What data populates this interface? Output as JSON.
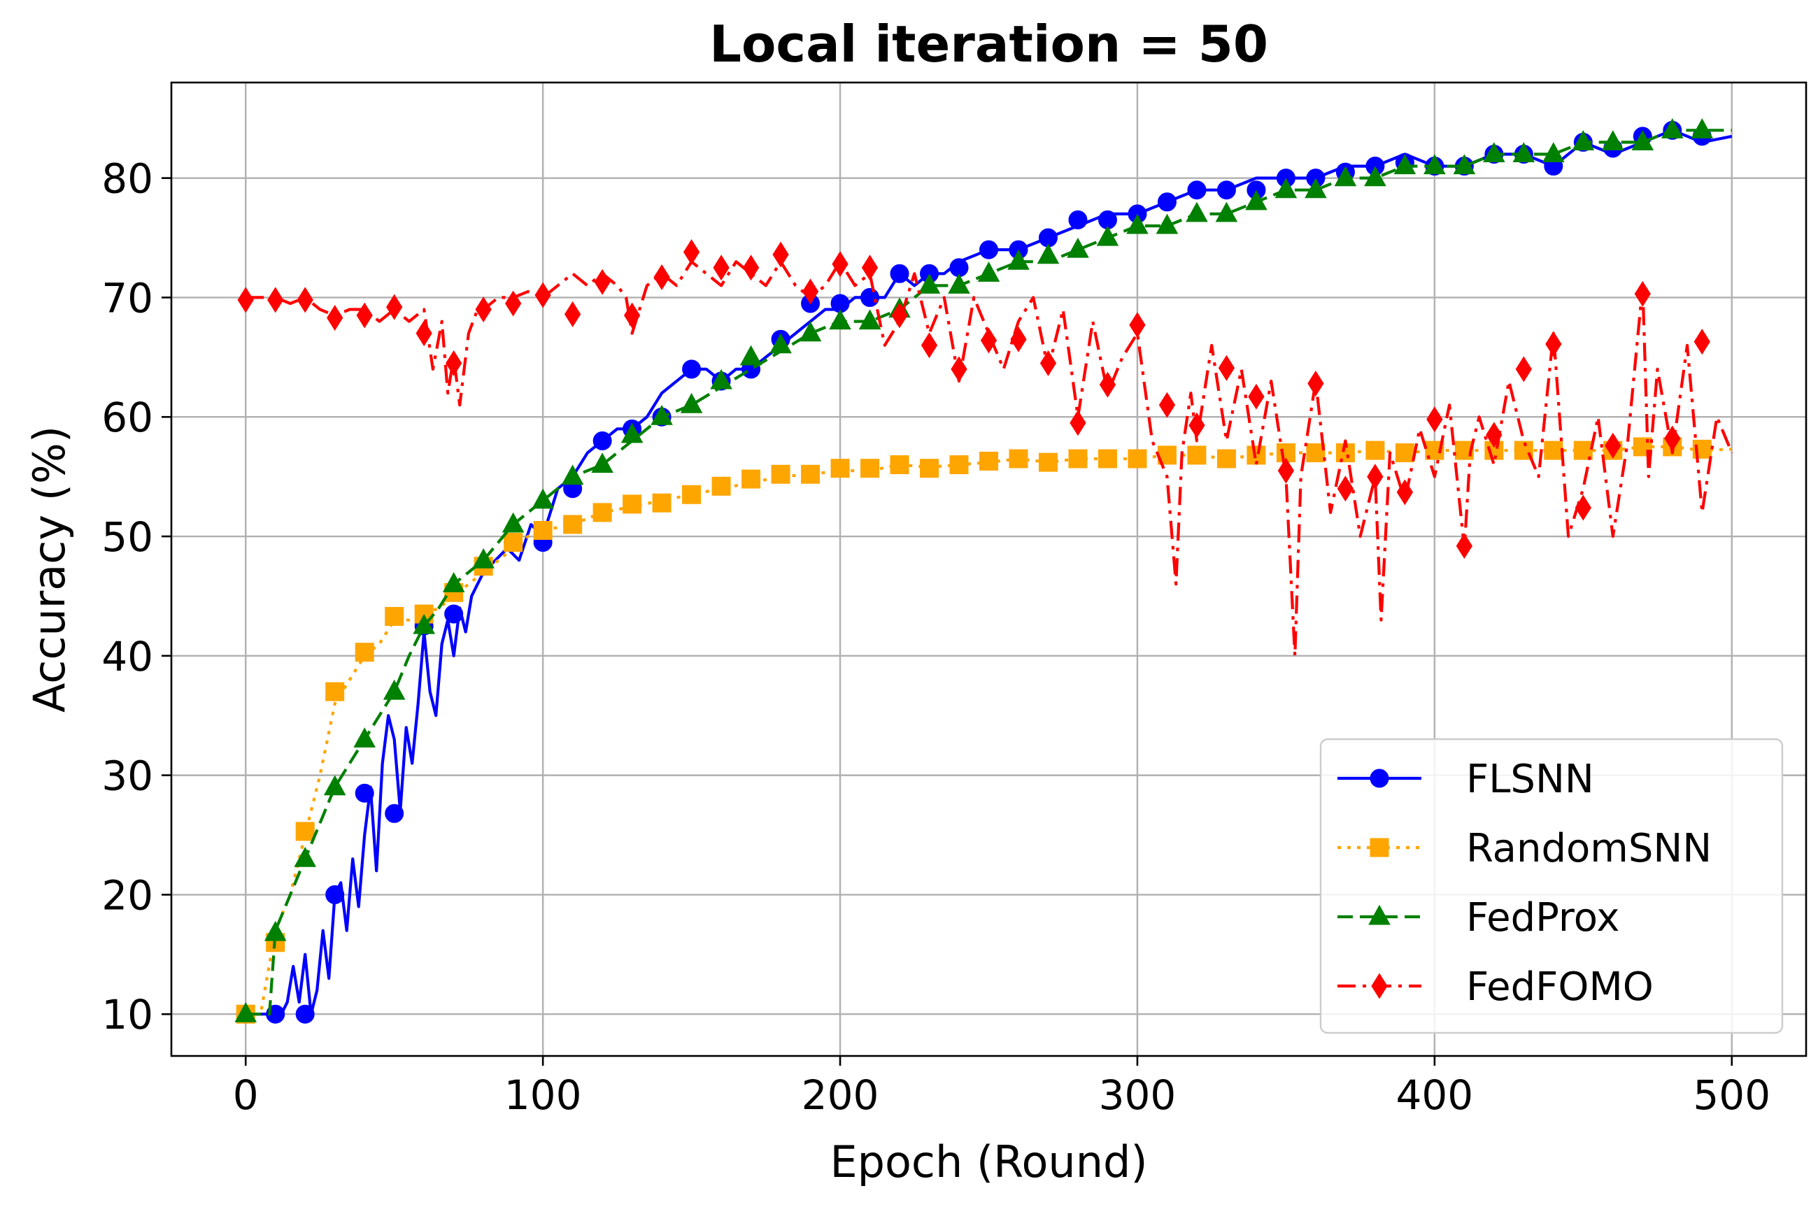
{
  "chart_data": {
    "type": "line",
    "title": "Local iteration = 50",
    "xlabel": "Epoch (Round)",
    "ylabel": "Accuracy (%)",
    "xlim": [
      -25,
      525
    ],
    "ylim": [
      6.5,
      88
    ],
    "xticks": [
      0,
      100,
      200,
      300,
      400,
      500
    ],
    "yticks": [
      10,
      20,
      30,
      40,
      50,
      60,
      70,
      80
    ],
    "grid": true,
    "legend": "lower-right",
    "series": [
      {
        "name": "FLSNN",
        "color": "#0000ff",
        "linestyle": "solid",
        "marker": "circle",
        "x": [
          0,
          2,
          4,
          6,
          8,
          10,
          12,
          14,
          16,
          18,
          20,
          22,
          24,
          26,
          28,
          30,
          32,
          34,
          36,
          38,
          40,
          42,
          44,
          46,
          48,
          50,
          52,
          54,
          56,
          58,
          60,
          62,
          64,
          66,
          68,
          70,
          72,
          74,
          76,
          78,
          80,
          84,
          88,
          92,
          96,
          100,
          105,
          110,
          115,
          120,
          125,
          130,
          135,
          140,
          145,
          150,
          155,
          160,
          165,
          170,
          175,
          180,
          185,
          190,
          195,
          200,
          205,
          210,
          215,
          220,
          225,
          230,
          235,
          240,
          250,
          260,
          270,
          280,
          290,
          300,
          310,
          320,
          330,
          340,
          350,
          360,
          370,
          380,
          390,
          400,
          410,
          420,
          430,
          440,
          450,
          460,
          470,
          480,
          490,
          500
        ],
        "y": [
          10,
          10,
          10,
          10,
          10,
          10,
          10,
          11,
          14,
          11,
          15,
          10,
          12,
          17,
          13,
          20,
          21,
          17,
          23,
          19,
          25,
          29,
          22,
          31,
          35,
          33,
          27,
          34,
          31,
          36,
          42,
          37,
          35,
          41,
          43,
          40,
          44,
          42,
          45,
          46,
          47,
          48,
          49,
          48,
          51,
          50,
          54,
          55,
          57,
          58,
          59,
          59,
          60,
          62,
          63,
          64,
          64,
          63,
          64,
          64,
          65,
          66,
          67,
          68,
          69,
          69,
          70,
          70,
          70,
          72,
          71,
          72,
          72,
          73,
          74,
          74,
          75,
          76,
          77,
          77,
          78,
          79,
          79,
          80,
          80,
          80,
          81,
          81,
          82,
          81,
          81,
          82,
          82,
          81,
          83,
          82,
          83,
          84,
          83,
          83.5
        ],
        "markers_x": [
          0,
          10,
          20,
          30,
          40,
          50,
          60,
          70,
          80,
          90,
          100,
          110,
          120,
          130,
          140,
          150,
          160,
          170,
          180,
          190,
          200,
          210,
          220,
          230,
          240,
          250,
          260,
          270,
          280,
          290,
          300,
          310,
          320,
          330,
          340,
          350,
          360,
          370,
          380,
          390,
          400,
          410,
          420,
          430,
          440,
          450,
          460,
          470,
          480,
          490
        ],
        "markers_y": [
          10,
          10,
          10,
          20,
          28.5,
          26.8,
          42.5,
          43.5,
          47.5,
          49.5,
          49.5,
          54,
          58,
          59,
          60,
          64,
          63,
          64,
          66.5,
          69.5,
          69.5,
          70,
          72,
          72,
          72.5,
          74,
          74,
          75,
          76.5,
          76.5,
          77,
          78,
          79,
          79,
          79,
          80,
          80,
          80.5,
          81,
          81.3,
          81,
          81,
          82,
          82,
          81,
          83,
          82.5,
          83.5,
          84,
          83.5
        ]
      },
      {
        "name": "RandomSNN",
        "color": "#ffa500",
        "linestyle": "dotted",
        "marker": "square",
        "x": [
          0,
          5,
          10,
          15,
          20,
          25,
          30,
          35,
          40,
          45,
          50,
          55,
          60,
          65,
          70,
          75,
          80,
          85,
          90,
          95,
          100,
          110,
          120,
          130,
          140,
          150,
          160,
          170,
          180,
          190,
          200,
          210,
          220,
          230,
          240,
          250,
          260,
          270,
          280,
          290,
          300,
          310,
          320,
          330,
          340,
          350,
          360,
          370,
          380,
          390,
          400,
          410,
          420,
          430,
          440,
          450,
          460,
          470,
          480,
          490,
          500
        ],
        "y": [
          10,
          10,
          17,
          20,
          25,
          30,
          36,
          38,
          40,
          41,
          43,
          43,
          43.5,
          44,
          45,
          46,
          47,
          48,
          49,
          50,
          50.5,
          51,
          52,
          52.5,
          53,
          53.5,
          54,
          54.5,
          55,
          55.2,
          55.5,
          55.5,
          56,
          55.8,
          56,
          56.2,
          56.5,
          56.2,
          56.5,
          56.5,
          56.5,
          56.8,
          56.8,
          56.5,
          56.8,
          57,
          57,
          57,
          57.2,
          57,
          57.2,
          57.2,
          57.2,
          57.2,
          57.2,
          57.2,
          57.2,
          57.5,
          57.5,
          57.2,
          57.3
        ],
        "markers_x": [
          0,
          10,
          20,
          30,
          40,
          50,
          60,
          70,
          80,
          90,
          100,
          110,
          120,
          130,
          140,
          150,
          160,
          170,
          180,
          190,
          200,
          210,
          220,
          230,
          240,
          250,
          260,
          270,
          280,
          290,
          300,
          310,
          320,
          330,
          340,
          350,
          360,
          370,
          380,
          390,
          400,
          410,
          420,
          430,
          440,
          450,
          460,
          470,
          480,
          490
        ],
        "markers_y": [
          10,
          16,
          25.3,
          37,
          40.3,
          43.3,
          43.5,
          45.3,
          47.5,
          49.5,
          50.5,
          51,
          52,
          52.7,
          52.8,
          53.5,
          54.2,
          54.8,
          55.2,
          55.2,
          55.7,
          55.7,
          56,
          55.7,
          56,
          56.3,
          56.5,
          56.2,
          56.5,
          56.5,
          56.5,
          56.8,
          56.8,
          56.5,
          56.8,
          57,
          57,
          57,
          57.2,
          57,
          57.2,
          57.2,
          57.2,
          57.2,
          57.2,
          57.2,
          57.2,
          57.5,
          57.5,
          57.3
        ]
      },
      {
        "name": "FedProx",
        "color": "#008000",
        "linestyle": "dashed",
        "marker": "triangle",
        "x": [
          0,
          5,
          8,
          10,
          15,
          20,
          25,
          30,
          35,
          40,
          45,
          50,
          55,
          60,
          65,
          70,
          75,
          80,
          85,
          90,
          95,
          100,
          110,
          120,
          130,
          140,
          150,
          160,
          170,
          180,
          190,
          200,
          210,
          220,
          230,
          240,
          250,
          260,
          270,
          280,
          290,
          300,
          310,
          320,
          330,
          340,
          350,
          360,
          370,
          380,
          390,
          400,
          410,
          420,
          430,
          440,
          450,
          460,
          470,
          480,
          490,
          500
        ],
        "y": [
          10,
          10,
          10,
          17,
          20,
          23,
          26,
          29,
          31,
          33,
          35,
          37,
          40,
          42.5,
          44,
          46,
          47,
          48,
          49.5,
          51,
          52,
          53,
          55,
          56,
          58,
          60,
          61,
          62.5,
          64,
          65.5,
          67,
          68,
          68,
          69,
          71,
          71,
          72,
          73,
          73,
          74,
          75,
          76,
          76,
          77,
          77,
          78,
          79,
          79,
          80,
          80,
          81,
          81,
          81,
          82,
          82,
          82,
          83,
          83,
          83,
          84,
          84,
          84
        ],
        "markers_x": [
          0,
          10,
          20,
          30,
          40,
          50,
          60,
          70,
          80,
          90,
          100,
          110,
          120,
          130,
          140,
          150,
          160,
          170,
          180,
          190,
          200,
          210,
          220,
          230,
          240,
          250,
          260,
          270,
          280,
          290,
          300,
          310,
          320,
          330,
          340,
          350,
          360,
          370,
          380,
          390,
          400,
          410,
          420,
          430,
          440,
          450,
          460,
          470,
          480,
          490
        ],
        "markers_y": [
          10,
          16.8,
          23,
          29,
          33,
          37,
          42.5,
          46,
          48,
          51,
          53,
          55,
          56,
          58.5,
          60,
          61,
          63,
          65,
          66,
          67,
          68,
          68,
          69,
          71,
          71,
          72,
          73,
          73.5,
          74,
          75,
          76,
          76,
          77,
          77,
          78,
          79,
          79,
          80,
          80,
          81,
          81,
          81,
          82,
          82,
          82,
          83,
          83,
          83,
          84,
          84
        ]
      },
      {
        "name": "FedFOMO",
        "color": "#ff0000",
        "linestyle": "dashdot",
        "marker": "diamond",
        "x": [
          0,
          5,
          10,
          15,
          20,
          25,
          30,
          35,
          40,
          45,
          50,
          55,
          60,
          63,
          66,
          68,
          70,
          72,
          75,
          78,
          80,
          85,
          90,
          95,
          100,
          105,
          110,
          115,
          120,
          125,
          128,
          130,
          135,
          140,
          145,
          150,
          155,
          160,
          165,
          170,
          175,
          180,
          185,
          190,
          195,
          200,
          205,
          210,
          215,
          220,
          225,
          230,
          235,
          240,
          245,
          250,
          255,
          260,
          265,
          270,
          275,
          280,
          285,
          290,
          295,
          300,
          305,
          310,
          313,
          315,
          318,
          320,
          325,
          330,
          335,
          340,
          345,
          350,
          353,
          355,
          360,
          365,
          370,
          375,
          380,
          382,
          385,
          390,
          395,
          400,
          405,
          410,
          412,
          415,
          420,
          425,
          430,
          435,
          440,
          445,
          450,
          455,
          460,
          465,
          470,
          472,
          475,
          480,
          485,
          490,
          495,
          500
        ],
        "y": [
          70,
          70,
          70,
          69.5,
          70,
          69,
          68.5,
          69,
          69,
          68,
          69,
          68,
          69,
          64,
          68,
          62,
          65,
          61,
          67,
          69,
          69,
          70,
          70,
          70.5,
          70,
          71,
          72,
          71,
          72,
          71,
          70,
          67,
          71,
          72,
          71,
          73,
          72,
          71,
          73,
          72,
          71,
          73,
          71,
          70,
          71,
          73,
          71,
          72,
          66,
          68,
          72,
          67,
          70,
          63,
          70,
          67,
          64,
          68,
          70,
          64,
          69,
          60,
          68,
          62,
          65,
          67,
          58,
          55,
          46,
          57,
          62,
          58,
          66,
          58,
          64,
          56,
          63,
          55,
          40,
          55,
          63,
          52,
          58,
          50,
          55,
          43,
          57,
          53,
          59,
          55,
          61,
          49,
          57,
          60,
          56,
          63,
          58,
          55,
          67,
          50,
          54,
          60,
          50,
          58,
          71,
          55,
          64,
          57,
          66,
          52,
          60,
          57
        ],
        "markers_x": [
          0,
          10,
          20,
          30,
          40,
          50,
          60,
          70,
          80,
          90,
          100,
          110,
          120,
          130,
          140,
          150,
          160,
          170,
          180,
          190,
          200,
          210,
          220,
          230,
          240,
          250,
          260,
          270,
          280,
          290,
          300,
          310,
          320,
          330,
          340,
          350,
          360,
          370,
          380,
          390,
          400,
          410,
          420,
          430,
          440,
          450,
          460,
          470,
          480,
          490
        ],
        "markers_y": [
          69.8,
          69.8,
          69.8,
          68.3,
          68.5,
          69.2,
          67,
          64.5,
          69,
          69.5,
          70.2,
          68.6,
          71.3,
          68.5,
          71.7,
          73.8,
          72.5,
          72.5,
          73.6,
          70.5,
          72.8,
          72.5,
          68.5,
          66,
          64,
          66.4,
          66.5,
          64.5,
          59.5,
          62.7,
          67.7,
          61,
          59.3,
          64.1,
          61.7,
          55.5,
          62.8,
          54,
          55,
          53.7,
          59.8,
          49.2,
          58.5,
          64,
          66.1,
          52.4,
          57.6,
          70.3,
          58.2,
          66.3
        ]
      }
    ]
  }
}
